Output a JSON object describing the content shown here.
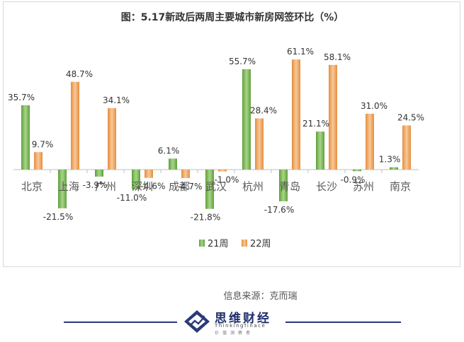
{
  "chart_data": {
    "type": "bar",
    "title": "图：5.17新政后两周主要城市新房网签环比（%）",
    "categories": [
      "北京",
      "上海",
      "广州",
      "深圳",
      "成都",
      "武汉",
      "杭州",
      "青岛",
      "长沙",
      "苏州",
      "南京"
    ],
    "series": [
      {
        "name": "21周",
        "color": "#7cb84e",
        "values": [
          35.7,
          -21.5,
          -3.9,
          -11.0,
          6.1,
          -21.8,
          55.7,
          -17.6,
          21.1,
          -0.9,
          1.3
        ],
        "labels": [
          "35.7%",
          "-21.5%",
          "-3.9%",
          "-11.0%",
          "6.1%",
          "-21.8%",
          "55.7%",
          "-17.6%",
          "21.1%",
          "-0.9%",
          "1.3%"
        ]
      },
      {
        "name": "22周",
        "color": "#f0a860",
        "values": [
          9.7,
          48.7,
          34.1,
          -4.6,
          -4.7,
          -1.0,
          28.4,
          61.1,
          58.1,
          31.0,
          24.5
        ],
        "labels": [
          "9.7%",
          "48.7%",
          "34.1%",
          "-4.6%",
          "-4.7%",
          "-1.0%",
          "28.4%",
          "61.1%",
          "58.1%",
          "31.0%",
          "24.5%"
        ]
      }
    ],
    "ylim": [
      -30,
      70
    ],
    "grid": false,
    "legend_position": "bottom"
  },
  "source": "信息来源：克而瑞",
  "brand": {
    "name": "思维财经",
    "english": "Thinkingfinace",
    "tagline": "价值洞察者"
  }
}
